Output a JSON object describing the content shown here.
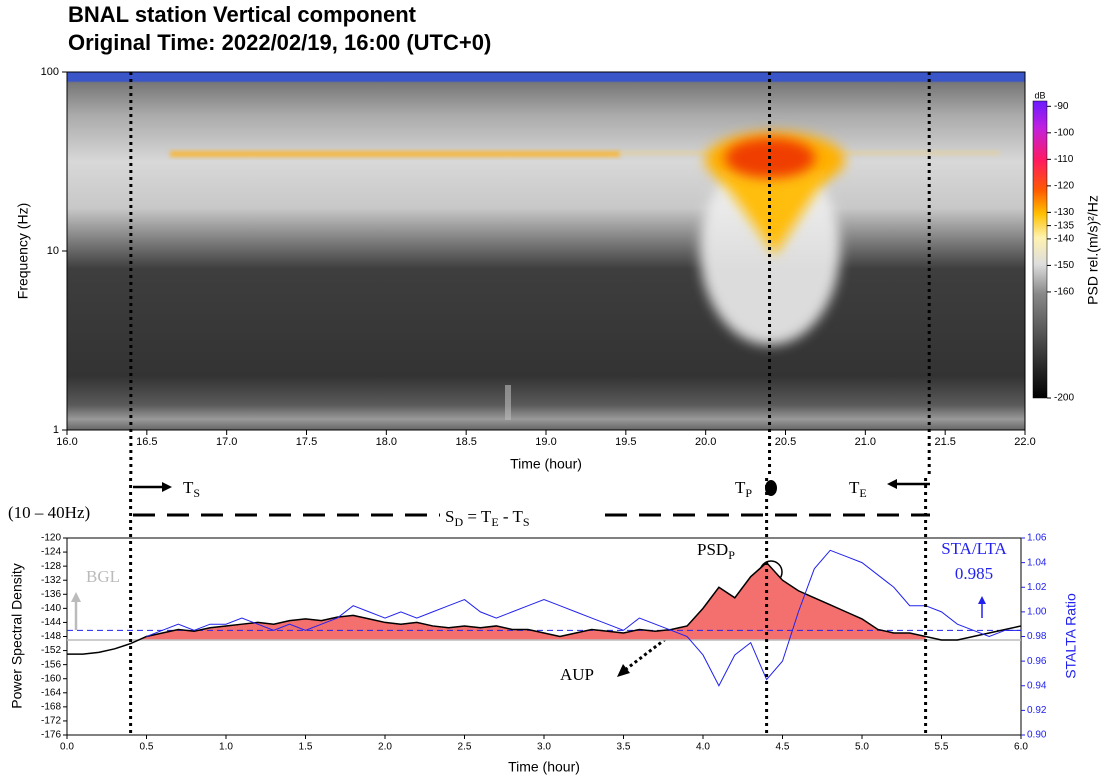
{
  "chart_data": [
    {
      "type": "spectrogram",
      "title": "BNAL station Vertical component",
      "subtitle": "Original Time: 2022/02/19, 16:00 (UTC+0)",
      "x_label": "Time (hour)",
      "y_label": "Frequency (Hz)",
      "xlim": [
        16,
        22
      ],
      "xticks": [
        {
          "value": 16,
          "label": "16.0"
        },
        16.5,
        {
          "value": 17,
          "label": "17.0"
        },
        17.5,
        {
          "value": 18,
          "label": "18.0"
        },
        18.5,
        {
          "value": 19,
          "label": "19.0"
        },
        19.5,
        {
          "value": 20,
          "label": "20.0"
        },
        20.5,
        {
          "value": 21,
          "label": "21.0"
        },
        21.5,
        {
          "value": 22,
          "label": "22.0"
        }
      ],
      "ylim": [
        1,
        100
      ],
      "yticks": [
        1,
        10,
        100
      ],
      "y_scale": "log",
      "colorbar_label": "PSD rel.(m/s)²/Hz",
      "colorbar_unit": "dB",
      "clim": [
        -200,
        -88
      ],
      "cticks": [
        -90,
        -100,
        -110,
        -120,
        -130,
        -135,
        -140,
        -150,
        -160,
        -200
      ],
      "markers": [
        16.4,
        20.4,
        21.4
      ],
      "annotations": {
        "ts": [
          "T",
          "S"
        ],
        "tp": [
          "T",
          "P"
        ],
        "te": [
          "T",
          "E"
        ],
        "band": "(10 – 40Hz)",
        "sd": [
          "S",
          "D",
          " = T",
          "E",
          " - T",
          "S"
        ]
      }
    },
    {
      "type": "line",
      "x_label": "Time (hour)",
      "y_label": "Power Spectral Density",
      "y2_label": "STALTA Ratio",
      "xlim": [
        0,
        6
      ],
      "xticks": [
        {
          "value": 0,
          "label": "0.0"
        },
        0.5,
        {
          "value": 1,
          "label": "1.0"
        },
        1.5,
        {
          "value": 2,
          "label": "2.0"
        },
        2.5,
        {
          "value": 3,
          "label": "3.0"
        },
        3.5,
        {
          "value": 4,
          "label": "4.0"
        },
        4.5,
        {
          "value": 5,
          "label": "5.0"
        },
        5.5,
        {
          "value": 6,
          "label": "6.0"
        }
      ],
      "ylim": [
        -176,
        -120
      ],
      "yticks": [
        -120,
        -124,
        -128,
        -132,
        -136,
        -140,
        -144,
        -148,
        -152,
        -156,
        -160,
        -164,
        -168,
        -172,
        -176
      ],
      "y2lim": [
        0.9,
        1.06
      ],
      "y2ticks": [
        {
          "value": 0.9,
          "label": "0.90"
        },
        0.92,
        0.94,
        0.96,
        0.98,
        {
          "value": 1,
          "label": "1.00"
        },
        1.02,
        1.04,
        1.06
      ],
      "x": [
        0,
        0.1,
        0.2,
        0.3,
        0.4,
        0.5,
        0.6,
        0.7,
        0.8,
        0.9,
        1,
        1.1,
        1.2,
        1.3,
        1.4,
        1.5,
        1.6,
        1.7,
        1.8,
        1.9,
        2,
        2.1,
        2.2,
        2.3,
        2.4,
        2.5,
        2.6,
        2.7,
        2.8,
        2.9,
        3,
        3.1,
        3.2,
        3.3,
        3.4,
        3.5,
        3.6,
        3.7,
        3.8,
        3.9,
        4,
        4.1,
        4.2,
        4.3,
        4.4,
        4.5,
        4.6,
        4.7,
        4.8,
        4.9,
        5,
        5.1,
        5.2,
        5.3,
        5.4,
        5.5,
        5.6,
        5.7,
        5.8,
        5.9,
        6
      ],
      "series": [
        {
          "name": "PSD",
          "color": "#000000",
          "values": [
            -153,
            -153,
            -152.5,
            -151.5,
            -150,
            -148,
            -147,
            -146,
            -146.5,
            -145.5,
            -145,
            -144.5,
            -144,
            -144.5,
            -143.5,
            -143,
            -143.5,
            -142.5,
            -142,
            -143,
            -144,
            -144.5,
            -144,
            -145,
            -145.5,
            -145,
            -145.5,
            -145,
            -146,
            -146,
            -147,
            -148,
            -147,
            -146,
            -146.5,
            -147,
            -146,
            -146.5,
            -146,
            -145,
            -140,
            -134,
            -137,
            -131,
            -127,
            -132,
            -135,
            -137,
            -139,
            -141,
            -143,
            -146,
            -147,
            -147,
            -148,
            -149,
            -149,
            -148,
            -147,
            -146,
            -145
          ]
        },
        {
          "name": "STA/LTA",
          "color": "#2222ee",
          "axis": "y2",
          "values": [
            null,
            null,
            null,
            null,
            null,
            0.98,
            0.985,
            0.99,
            0.985,
            0.99,
            0.99,
            0.995,
            0.99,
            0.985,
            0.99,
            0.985,
            0.99,
            0.995,
            1.005,
            1.0,
            0.995,
            1.0,
            0.995,
            1.0,
            1.005,
            1.01,
            1.0,
            0.995,
            1.0,
            1.005,
            1.01,
            1.005,
            1.0,
            0.995,
            0.99,
            0.985,
            0.995,
            0.99,
            0.985,
            0.98,
            0.965,
            0.94,
            0.965,
            0.975,
            0.945,
            0.96,
            1.0,
            1.035,
            1.05,
            1.045,
            1.04,
            1.03,
            1.02,
            1.005,
            1.005,
            1.0,
            0.99,
            0.985,
            0.98,
            0.985,
            0.985
          ]
        }
      ],
      "bgl": -149,
      "fill_color": "#f4706e",
      "threshold": 0.985,
      "markers": [
        0.4,
        4.4,
        5.4
      ],
      "annotations": {
        "psd_p": [
          "PSD",
          "P"
        ],
        "aup": "AUP",
        "bgl": "BGL",
        "sta_lta": "STA/LTA"
      }
    }
  ]
}
